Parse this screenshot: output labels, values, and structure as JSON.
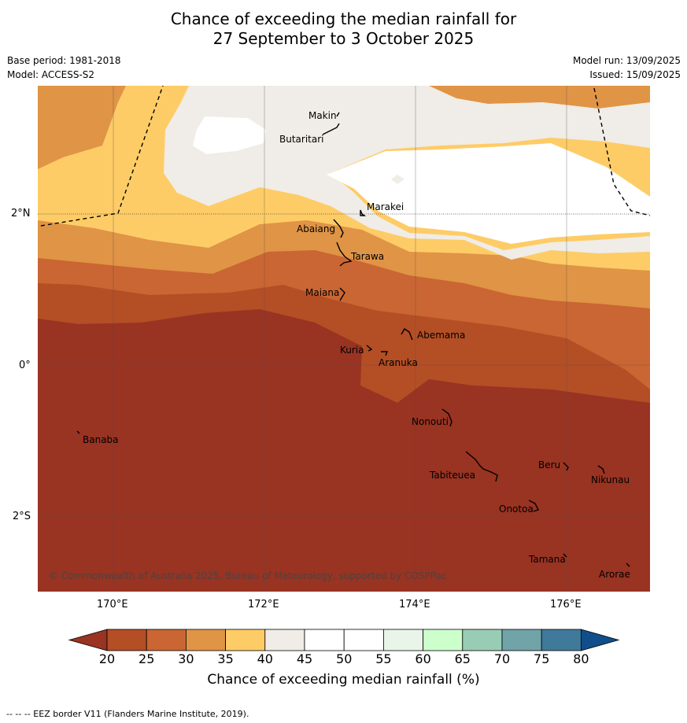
{
  "title": {
    "line1": "Chance of exceeding the median rainfall for",
    "line2": "27 September to 3 October 2025"
  },
  "meta": {
    "base_period": "Base period: 1981-2018",
    "model": "Model: ACCESS-S2",
    "model_run": "Model run: 13/09/2025",
    "issued": "Issued: 15/09/2025"
  },
  "map": {
    "lon_ticks": [
      "170°E",
      "172°E",
      "174°E",
      "176°E"
    ],
    "lat_ticks": [
      "2°N",
      "0°",
      "2°S"
    ],
    "copyright": "© Commonwealth of Australia 2025, Bureau of Meteorology, supported by COSPPac",
    "places": [
      {
        "name": "Makin"
      },
      {
        "name": "Butaritari"
      },
      {
        "name": "Marakei"
      },
      {
        "name": "Abaiang"
      },
      {
        "name": "Tarawa"
      },
      {
        "name": "Maiana"
      },
      {
        "name": "Abemama"
      },
      {
        "name": "Kuria"
      },
      {
        "name": "Aranuka"
      },
      {
        "name": "Banaba"
      },
      {
        "name": "Nonouti"
      },
      {
        "name": "Tabiteuea"
      },
      {
        "name": "Beru"
      },
      {
        "name": "Nikunau"
      },
      {
        "name": "Onotoa"
      },
      {
        "name": "Tamana"
      },
      {
        "name": "Arorae"
      }
    ]
  },
  "colorbar": {
    "title": "Chance of exceeding median rainfall (%)",
    "ticks": [
      "20",
      "25",
      "30",
      "35",
      "40",
      "45",
      "50",
      "55",
      "60",
      "65",
      "70",
      "75",
      "80"
    ],
    "colors": [
      "#993322",
      "#B44E25",
      "#CA6633",
      "#E09446",
      "#FECC66",
      "#F0ECE7",
      "#FFFFFF",
      "#FFFFFF",
      "#E9F5E9",
      "#CCFFCC",
      "#99CCB5",
      "#70A4A8",
      "#3F7A9B",
      "#104F8C"
    ]
  },
  "footnote": "--  --  -- EEZ border V11 (Flanders Marine Institute, 2019)."
}
